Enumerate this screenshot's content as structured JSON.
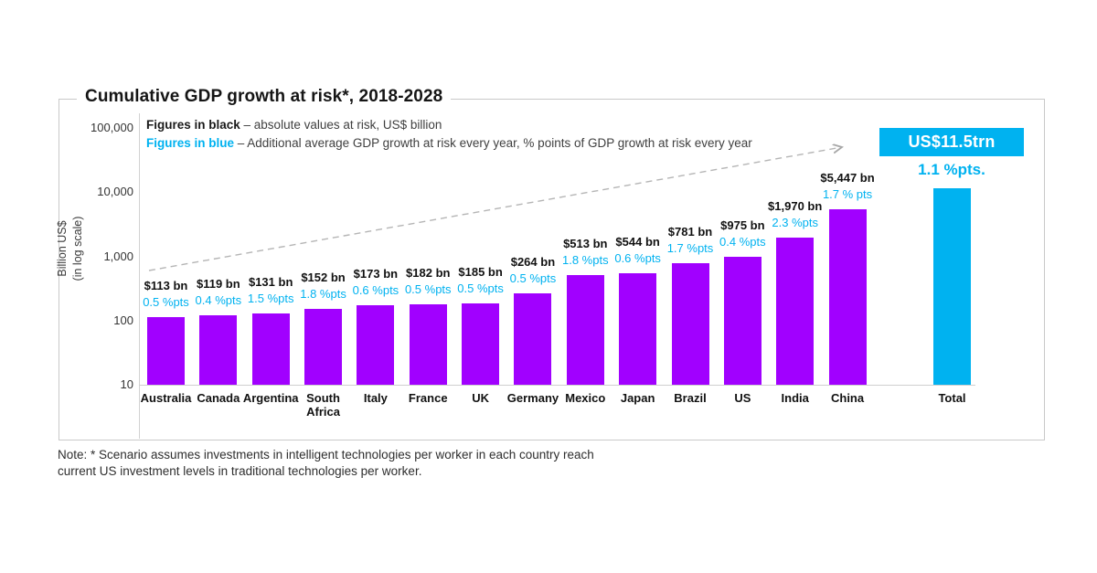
{
  "title": "Cumulative GDP growth at risk*, 2018-2028",
  "legend": {
    "line1_bold": "Figures in black",
    "line1_rest": " – absolute values at risk, US$ billion",
    "line2_bold": "Figures in blue",
    "line2_rest": " – Additional average GDP growth at risk every year, % points of GDP growth at risk every year"
  },
  "y_axis": {
    "label_line1": "Billion US$",
    "label_line2": "(in log scale)",
    "tick_labels": [
      "100,000",
      "10,000",
      "1,000",
      "100",
      "10"
    ],
    "tick_values": [
      100000,
      10000,
      1000,
      100,
      10
    ]
  },
  "colors": {
    "purple": "#A100FF",
    "cyan": "#00B2F0"
  },
  "note_line1": "Note: * Scenario assumes investments in intelligent technologies per worker in each country reach",
  "note_line2": "current US investment levels in traditional technologies per worker.",
  "chart_data": {
    "type": "bar",
    "scale": "log",
    "title": "Cumulative GDP growth at risk*, 2018-2028",
    "ylabel": "Billion US$ (in log scale)",
    "ylim": [
      10,
      100000
    ],
    "grid": false,
    "legend_position": "top-left",
    "categories": [
      "Australia",
      "Canada",
      "Argentina",
      "South Africa",
      "Italy",
      "France",
      "UK",
      "Germany",
      "Mexico",
      "Japan",
      "Brazil",
      "US",
      "India",
      "China"
    ],
    "category_display": [
      "Australia",
      "Canada",
      "Argentina",
      "South\nAfrica",
      "Italy",
      "France",
      "UK",
      "Germany",
      "Mexico",
      "Japan",
      "Brazil",
      "US",
      "India",
      "China"
    ],
    "series": [
      {
        "name": "Absolute values at risk, US$ billion",
        "color": "#A100FF",
        "values": [
          113,
          119,
          131,
          152,
          173,
          182,
          185,
          264,
          513,
          544,
          781,
          975,
          1970,
          5447
        ]
      },
      {
        "name": "Additional average GDP growth at risk every year, % points",
        "color": "#00B2F0",
        "values": [
          0.5,
          0.4,
          1.5,
          1.8,
          0.6,
          0.5,
          0.5,
          0.5,
          1.8,
          0.6,
          1.7,
          0.4,
          2.3,
          1.7
        ]
      }
    ],
    "value_labels": [
      "$113 bn",
      "$119 bn",
      "$131 bn",
      "$152 bn",
      "$173 bn",
      "$182 bn",
      "$185 bn",
      "$264 bn",
      "$513 bn",
      "$544 bn",
      "$781 bn",
      "$975 bn",
      "$1,970 bn",
      "$5,447 bn"
    ],
    "pts_labels": [
      "0.5 %pts",
      "0.4 %pts",
      "1.5 %pts",
      "1.8 %pts",
      "0.6 %pts",
      "0.5 %pts",
      "0.5 %pts",
      "0.5 %pts",
      "1.8 %pts",
      "0.6 %pts",
      "1.7 %pts",
      "0.4 %pts",
      "2.3 %pts",
      "1.7 % pts"
    ],
    "total": {
      "label": "Total",
      "value": 11500,
      "value_display": "US$11.5trn",
      "pts_display": "1.1 %pts.",
      "color": "#00B2F0"
    }
  }
}
